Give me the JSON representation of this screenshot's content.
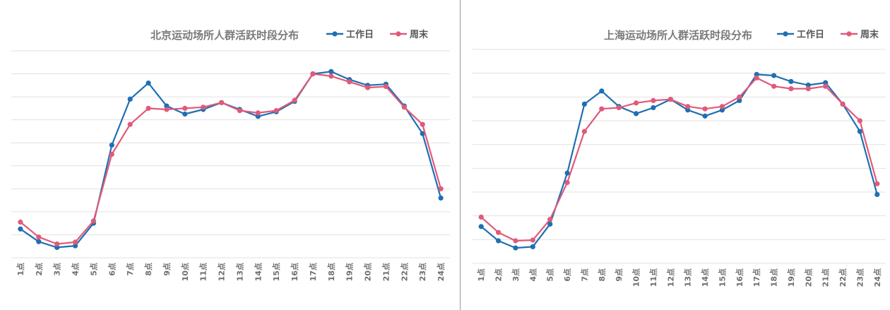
{
  "colors": {
    "weekday": "#1f6fb2",
    "weekend": "#e05a7a",
    "grid": "#e1e1e1",
    "axis_text": "#6e6e6e",
    "title_text": "#7a7a7a"
  },
  "chart_data": [
    {
      "type": "line",
      "title": "北京运动场所人群活跃时段分布",
      "legend_position": "top-right",
      "grid": true,
      "categories": [
        "1点",
        "2点",
        "3点",
        "4点",
        "5点",
        "6点",
        "7点",
        "8点",
        "9点",
        "10点",
        "11点",
        "12点",
        "13点",
        "14点",
        "15点",
        "16点",
        "17点",
        "18点",
        "19点",
        "20点",
        "21点",
        "22点",
        "23点",
        "24点"
      ],
      "ylim": [
        0,
        9
      ],
      "series": [
        {
          "name": "工作日",
          "values": [
            1.25,
            0.7,
            0.45,
            0.52,
            1.5,
            4.9,
            6.9,
            7.6,
            6.6,
            6.25,
            6.45,
            6.75,
            6.45,
            6.15,
            6.35,
            6.8,
            8.0,
            8.1,
            7.75,
            7.5,
            7.55,
            6.6,
            5.4,
            2.6
          ],
          "color": "#1f6fb2"
        },
        {
          "name": "周末",
          "values": [
            1.55,
            0.9,
            0.6,
            0.68,
            1.6,
            4.5,
            5.8,
            6.5,
            6.45,
            6.5,
            6.55,
            6.75,
            6.4,
            6.3,
            6.4,
            6.85,
            8.0,
            7.9,
            7.65,
            7.4,
            7.45,
            6.55,
            5.8,
            3.0
          ],
          "color": "#e05a7a"
        }
      ]
    },
    {
      "type": "line",
      "title": "上海运动场所人群活跃时段分布",
      "legend_position": "top-right",
      "grid": true,
      "categories": [
        "1点",
        "2点",
        "3点",
        "4点",
        "5点",
        "6点",
        "7点",
        "8点",
        "9点",
        "10点",
        "11点",
        "12点",
        "13点",
        "14点",
        "15点",
        "16点",
        "17点",
        "18点",
        "19点",
        "20点",
        "21点",
        "22点",
        "23点",
        "24点"
      ],
      "ylim": [
        0,
        9
      ],
      "series": [
        {
          "name": "工作日",
          "values": [
            1.55,
            0.95,
            0.65,
            0.7,
            1.65,
            3.8,
            6.7,
            7.25,
            6.6,
            6.3,
            6.55,
            6.9,
            6.45,
            6.2,
            6.45,
            6.85,
            7.95,
            7.9,
            7.65,
            7.5,
            7.6,
            6.7,
            5.55,
            2.9
          ],
          "color": "#1f6fb2"
        },
        {
          "name": "周末",
          "values": [
            1.95,
            1.3,
            0.95,
            0.98,
            1.85,
            3.4,
            5.55,
            6.5,
            6.55,
            6.75,
            6.85,
            6.9,
            6.6,
            6.5,
            6.6,
            7.0,
            7.8,
            7.45,
            7.35,
            7.35,
            7.45,
            6.7,
            6.0,
            3.35
          ],
          "color": "#e05a7a"
        }
      ]
    }
  ]
}
